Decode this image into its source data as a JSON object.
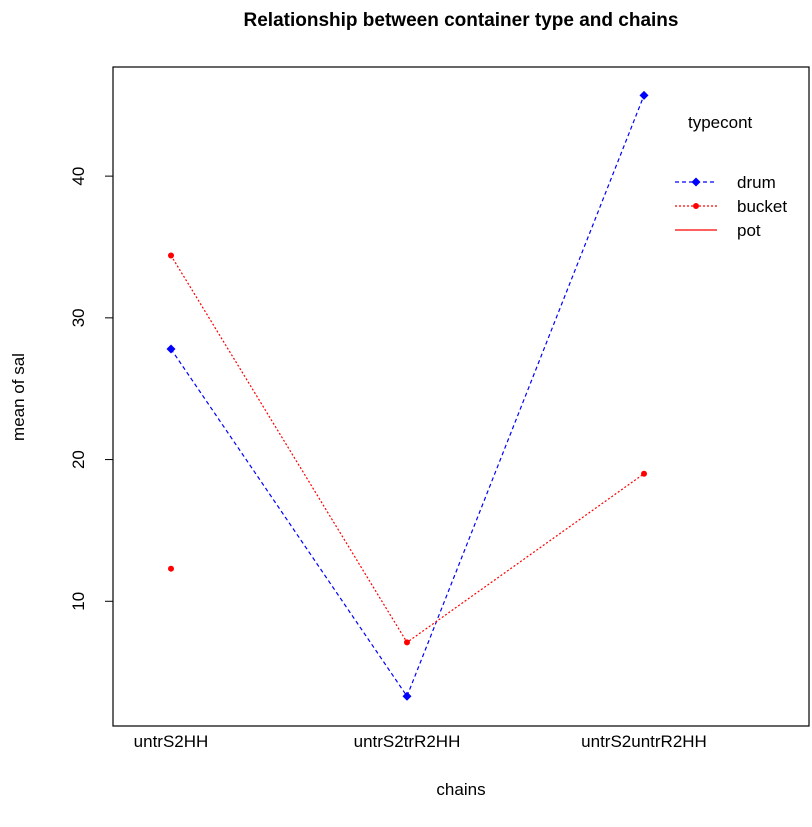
{
  "chart_data": {
    "type": "line",
    "title": "Relationship between container type and chains",
    "xlabel": "chains",
    "ylabel": "mean of sal",
    "categories": [
      "untrS2HH",
      "untrS2trR2HH",
      "untrS2untrR2HH"
    ],
    "ylim": [
      1.2,
      47.7
    ],
    "yticks": [
      10,
      20,
      30,
      40
    ],
    "grid": false,
    "legend": {
      "title": "typecont",
      "position": "top-right"
    },
    "series": [
      {
        "name": "drum",
        "values": [
          27.8,
          3.3,
          45.7
        ],
        "color": "#0000ff",
        "line_style": "dashed",
        "marker": "diamond"
      },
      {
        "name": "bucket",
        "values": [
          34.4,
          7.1,
          19.0
        ],
        "color": "#ff0000",
        "line_style": "dotted",
        "marker": "circle"
      },
      {
        "name": "pot",
        "values": [
          12.3,
          null,
          null
        ],
        "color": "#ff0000",
        "line_style": "solid",
        "marker": "none"
      }
    ]
  }
}
